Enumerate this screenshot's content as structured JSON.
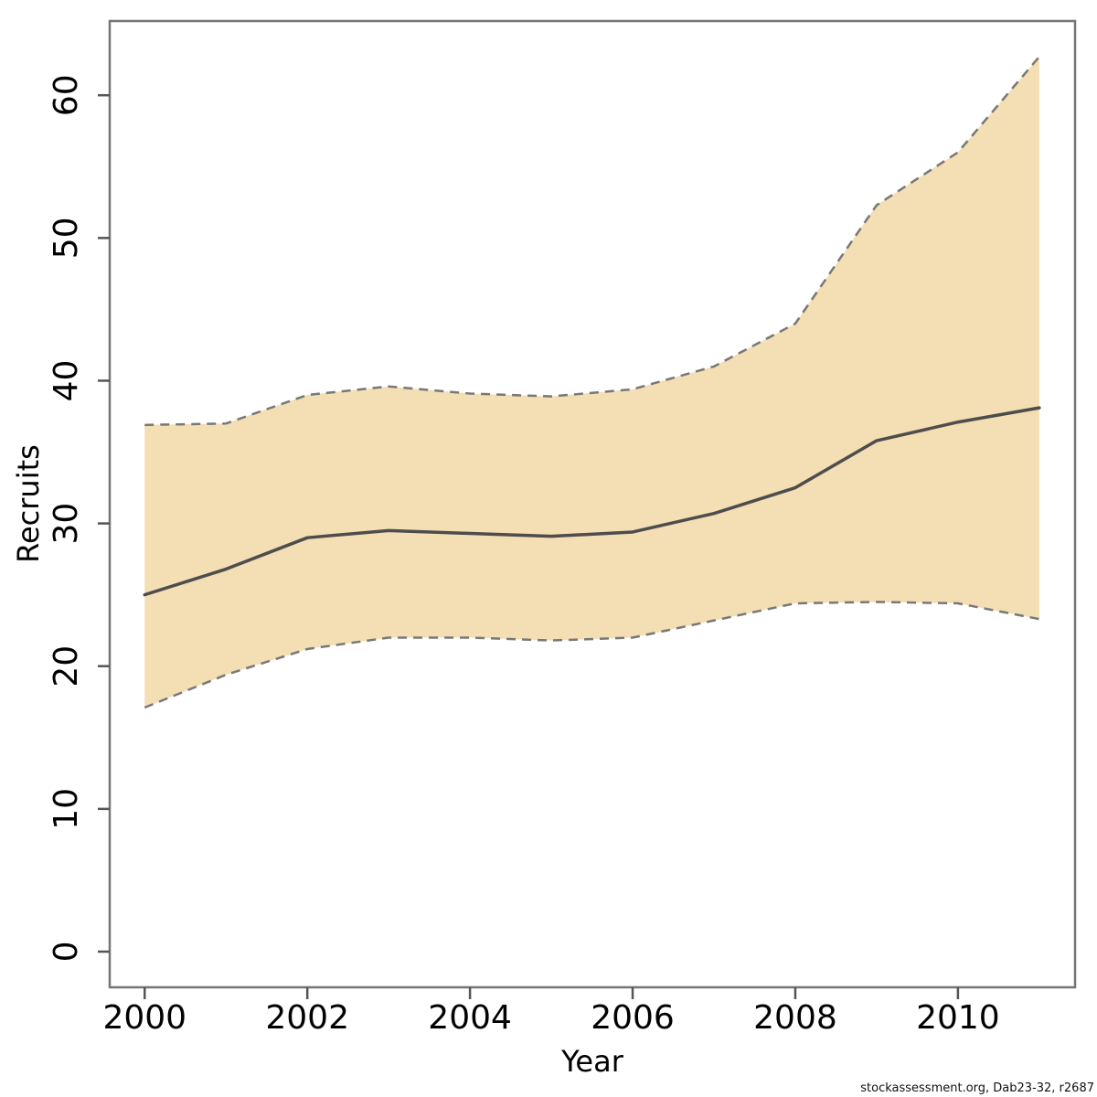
{
  "figure": {
    "background": "#ffffff"
  },
  "footer": {
    "credit": "stockassessment.org, Dab23-32, r2687"
  },
  "chart_data": {
    "type": "area",
    "title": "",
    "xlabel": "Year",
    "ylabel": "Recruits",
    "x": [
      2000,
      2001,
      2002,
      2003,
      2004,
      2005,
      2006,
      2007,
      2008,
      2009,
      2010,
      2011
    ],
    "series": [
      {
        "name": "median",
        "style": "solid",
        "values": [
          25.0,
          26.8,
          29.0,
          29.5,
          29.3,
          29.1,
          29.4,
          30.7,
          32.5,
          35.8,
          37.1,
          38.1
        ]
      },
      {
        "name": "ci_upper",
        "style": "dashed",
        "values": [
          36.9,
          37.0,
          39.0,
          39.6,
          39.1,
          38.9,
          39.4,
          41.0,
          44.0,
          52.3,
          56.0,
          62.7
        ]
      },
      {
        "name": "ci_lower",
        "style": "dashed",
        "values": [
          17.1,
          19.4,
          21.2,
          22.0,
          22.0,
          21.8,
          22.0,
          23.2,
          24.4,
          24.5,
          24.4,
          23.3
        ]
      }
    ],
    "band": {
      "upper": "ci_upper",
      "lower": "ci_lower"
    },
    "x_ticks": [
      2000,
      2002,
      2004,
      2006,
      2008,
      2010
    ],
    "y_ticks": [
      0,
      10,
      20,
      30,
      40,
      50,
      60
    ],
    "xlim": [
      1999.57,
      2011.44
    ],
    "ylim": [
      -2.5,
      65.2
    ],
    "grid": false,
    "legend": "none",
    "colors": {
      "band_fill": "#F4DEB3",
      "band_edge": "#787878",
      "median_line": "#4D4D4D",
      "axis_box": "#757575",
      "tick": "#555555",
      "tick_label": "#000000"
    }
  }
}
